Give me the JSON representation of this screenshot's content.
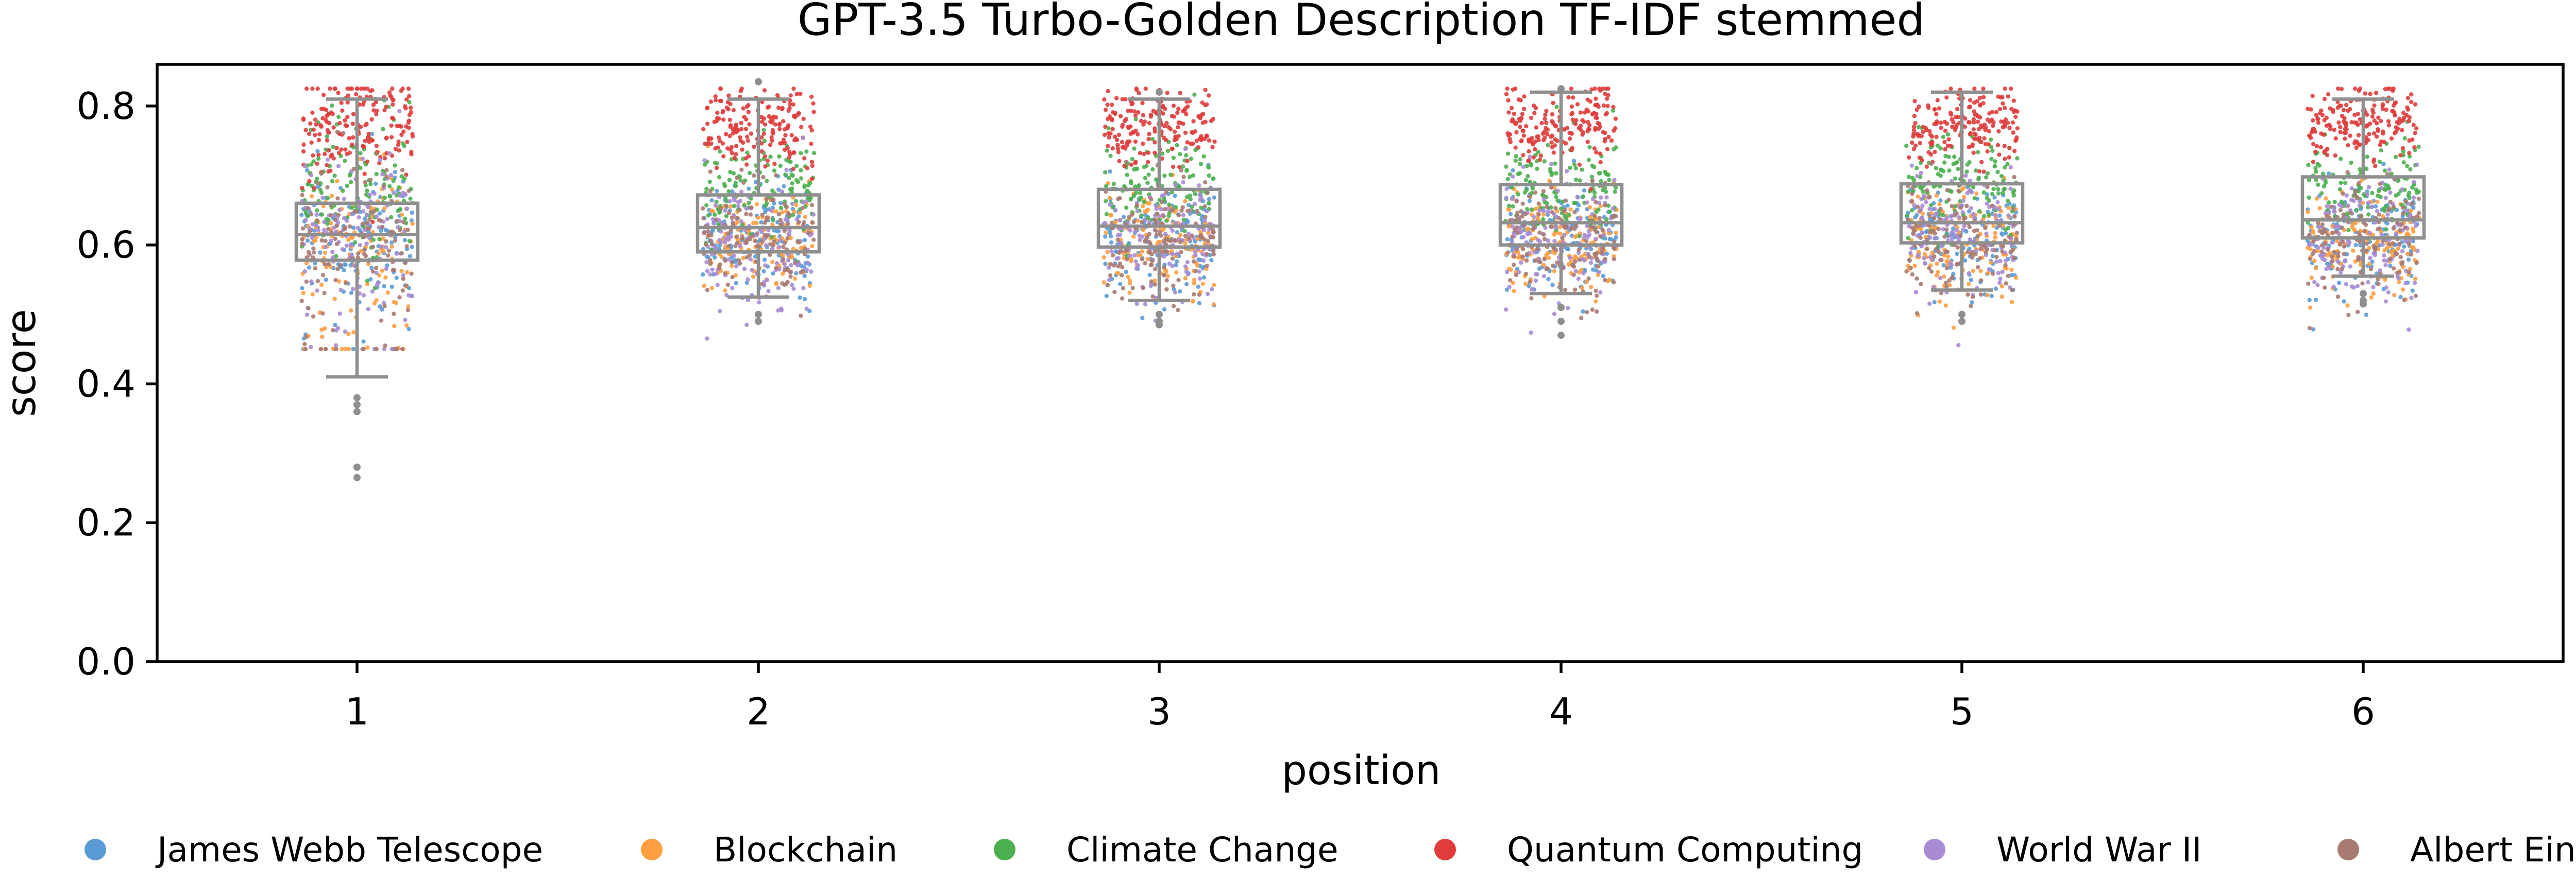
{
  "chart_data": {
    "type": "scatter",
    "subtype": "strip-plot-with-box",
    "title": "GPT-3.5 Turbo-Golden Description TF-IDF stemmed",
    "xlabel": "position",
    "ylabel": "score",
    "categories": [
      "1",
      "2",
      "3",
      "4",
      "5",
      "6"
    ],
    "ylim": [
      0.0,
      0.86
    ],
    "yticks": [
      {
        "value": 0.0,
        "label": "0.0"
      },
      {
        "value": 0.2,
        "label": "0.2"
      },
      {
        "value": 0.4,
        "label": "0.4"
      },
      {
        "value": 0.6,
        "label": "0.6"
      },
      {
        "value": 0.8,
        "label": "0.8"
      }
    ],
    "grid": false,
    "legend_position": "bottom",
    "box_color": "#8f8f8f",
    "boxes": [
      {
        "position": "1",
        "whisker_low": 0.41,
        "q1": 0.578,
        "median": 0.615,
        "q3": 0.66,
        "whisker_high": 0.81,
        "outliers": [
          0.28,
          0.265,
          0.38,
          0.37,
          0.36
        ]
      },
      {
        "position": "2",
        "whisker_low": 0.525,
        "q1": 0.59,
        "median": 0.625,
        "q3": 0.672,
        "whisker_high": 0.81,
        "outliers": [
          0.835,
          0.5,
          0.49
        ]
      },
      {
        "position": "3",
        "whisker_low": 0.52,
        "q1": 0.597,
        "median": 0.627,
        "q3": 0.68,
        "whisker_high": 0.81,
        "outliers": [
          0.82,
          0.5,
          0.49,
          0.485
        ]
      },
      {
        "position": "4",
        "whisker_low": 0.53,
        "q1": 0.6,
        "median": 0.632,
        "q3": 0.687,
        "whisker_high": 0.82,
        "outliers": [
          0.825,
          0.51,
          0.49,
          0.47
        ]
      },
      {
        "position": "5",
        "whisker_low": 0.535,
        "q1": 0.603,
        "median": 0.632,
        "q3": 0.688,
        "whisker_high": 0.82,
        "outliers": [
          0.5,
          0.49
        ]
      },
      {
        "position": "6",
        "whisker_low": 0.555,
        "q1": 0.61,
        "median": 0.636,
        "q3": 0.698,
        "whisker_high": 0.81,
        "outliers": [
          0.53,
          0.52,
          0.515
        ]
      }
    ],
    "series": [
      {
        "name": "James Webb Telescope",
        "color": "#5b9bd5",
        "center": 0.61,
        "spread": 0.04
      },
      {
        "name": "Blockchain",
        "color": "#ff9f40",
        "center": 0.605,
        "spread": 0.04
      },
      {
        "name": "Climate Change",
        "color": "#4cb050",
        "center": 0.685,
        "spread": 0.035
      },
      {
        "name": "Quantum Computing",
        "color": "#e03c3c",
        "center": 0.77,
        "spread": 0.028
      },
      {
        "name": "World War II",
        "color": "#a98bd4",
        "center": 0.61,
        "spread": 0.045
      },
      {
        "name": "Albert Einstein",
        "color": "#a97a72",
        "center": 0.605,
        "spread": 0.04
      }
    ]
  }
}
